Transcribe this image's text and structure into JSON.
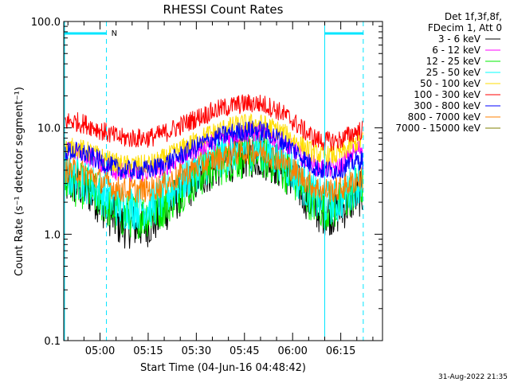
{
  "chart_data": {
    "type": "line",
    "title": "RHESSI Count Rates",
    "xlabel": "Start Time (04-Jun-16 04:48:42)",
    "ylabel": "Count Rate (s⁻¹ detector segment⁻¹)",
    "y_scale": "log",
    "ylim": [
      0.1,
      100.0
    ],
    "y_ticks": [
      {
        "value": 0.1,
        "label": "0.1"
      },
      {
        "value": 1.0,
        "label": "1.0"
      },
      {
        "value": 10.0,
        "label": "10.0"
      },
      {
        "value": 100.0,
        "label": "100.0"
      }
    ],
    "xlim": [
      "04:48:42",
      "06:28"
    ],
    "x_ticks": [
      "05:00",
      "05:15",
      "05:30",
      "05:45",
      "06:00",
      "06:15"
    ],
    "legend_header": [
      "Det 1f,3f,8f,",
      "FDecim 1, Att 0"
    ],
    "legend_position": "top-right, outside plot",
    "series": [
      {
        "name": "3 - 6 keV",
        "color": "#000000",
        "start": 3.0,
        "mid_min": 1.2,
        "peak": 5.5,
        "end": 1.6,
        "end_rise": 2.4
      },
      {
        "name": "6 - 12 keV",
        "color": "#ff00ff",
        "start": 6.0,
        "mid_min": 3.8,
        "peak": 9.0,
        "end": 4.2,
        "end_rise": 6.5
      },
      {
        "name": "12 - 25 keV",
        "color": "#00ee00",
        "start": 3.0,
        "mid_min": 1.5,
        "peak": 5.5,
        "end": 1.8,
        "end_rise": 2.8
      },
      {
        "name": "25 - 50 keV",
        "color": "#00ffff",
        "start": 3.5,
        "mid_min": 1.8,
        "peak": 6.5,
        "end": 2.0,
        "end_rise": 3.2
      },
      {
        "name": "50 - 100 keV",
        "color": "#ffdd00",
        "start": 6.5,
        "mid_min": 4.5,
        "peak": 11.0,
        "end": 5.5,
        "end_rise": 7.5
      },
      {
        "name": "100 - 300 keV",
        "color": "#ff0000",
        "start": 11.5,
        "mid_min": 8.0,
        "peak": 17.0,
        "end": 7.5,
        "end_rise": 9.5
      },
      {
        "name": "300 - 800 keV",
        "color": "#0000ff",
        "start": 6.0,
        "mid_min": 4.0,
        "peak": 9.5,
        "end": 4.0,
        "end_rise": 5.0
      },
      {
        "name": "800 - 7000 keV",
        "color": "#ff8000",
        "start": 4.0,
        "mid_min": 2.6,
        "peak": 6.0,
        "end": 2.6,
        "end_rise": 3.3
      },
      {
        "name": "7000 - 15000 keV",
        "color": "#808000",
        "start": 3.8,
        "mid_min": 2.5,
        "peak": 5.5,
        "end": 2.4,
        "end_rise": 3.0
      }
    ],
    "draw_order": [
      0,
      2,
      3,
      1,
      4,
      5,
      6,
      7
    ],
    "overlays": {
      "color": "#00e5ff",
      "night_bars": [
        {
          "label": "N",
          "start": "04:48:42",
          "end": "05:02"
        },
        {
          "label": "",
          "start": "06:10",
          "end": "06:22"
        }
      ],
      "solid_vlines": [
        "04:48:42",
        "06:10"
      ],
      "dashed_vlines": [
        "05:02",
        "06:22"
      ]
    }
  },
  "timestamp": "31-Aug-2022 21:35"
}
